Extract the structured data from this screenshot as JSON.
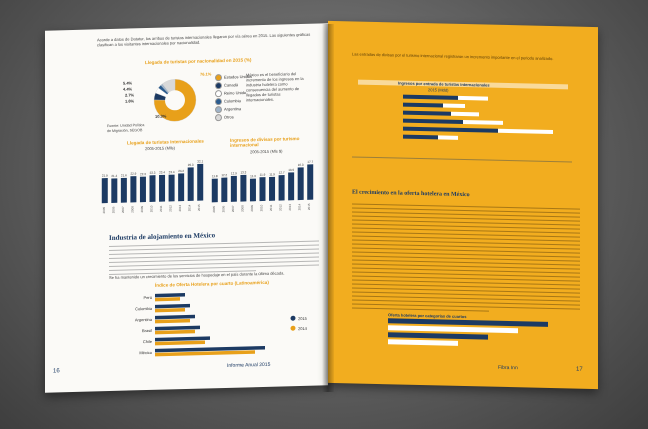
{
  "left_page": {
    "intro_text": "Acorde a datos de Datatur, los arribos de turistas internacionales llegaron por vía aérea en 2015. Las siguientes gráficas clasifican a los visitantes internacionales por nacionalidad.",
    "donut_title": "Llegada de turistas por nacionalidad en 2015 (%)",
    "donut_values": [
      "76.1%",
      "5.4%",
      "4.4%",
      "2.7%",
      "1.6%",
      "10.3%"
    ],
    "legend": [
      "Estados Unidos",
      "Canadá",
      "Reino Unido",
      "Colombia",
      "Argentina",
      "Otros"
    ],
    "donut_source": "Fuente: Unidad Política de Migración, SEGOB",
    "side_text": "México es el beneficiario del incremento de los ingresos en la industria hotelera como consecuencia del aumento de llegadas de turistas internacionales.",
    "chart1_title": "Llegada de turistas internacionales",
    "chart1_subtitle": "2005-2015 (Mlls)",
    "chart2_title": "Ingresos de divisas por turismo internacional",
    "chart2_subtitle": "2005-2015 (Mls $)",
    "section_title": "Industria de alojamiento en México",
    "body_text": "Se ha mantenido un crecimiento de los servicios de hospedaje en el país durante la última década.",
    "hbar_title": "Índice de Oferta Hotelera por cuarto (Latinoamérica)",
    "hbar_countries": [
      "Perú",
      "Colombia",
      "Argentina",
      "Brasil",
      "Chile",
      "México"
    ],
    "hbar_legend": [
      "2015",
      "2014"
    ],
    "page_number": "16",
    "footer_brand": "Informe Anual 2015"
  },
  "right_page": {
    "top_text": "Las entradas de divisas por el turismo internacional registraron un incremento importante en el periodo analizado.",
    "table_title": "Ingresos por entrada de turistas internacionales",
    "table_subtitle": "2015 (Mdd)",
    "section_title": "El crecimiento en la oferta hotelera en México",
    "bottom_chart_title": "Oferta hotelera por categorías de cuartos",
    "page_number": "17",
    "footer_brand": "Fibra Inn"
  },
  "colors": {
    "navy": "#1c3a63",
    "orange": "#f2ad1f",
    "accent": "#e8a01a"
  },
  "chart_data": [
    {
      "type": "pie",
      "title": "Llegada de turistas por nacionalidad en 2015 (%)",
      "categories": [
        "Estados Unidos",
        "Canadá",
        "Reino Unido",
        "Colombia",
        "Argentina",
        "Otros"
      ],
      "values": [
        76.1,
        5.4,
        4.4,
        2.7,
        1.6,
        10.3
      ]
    },
    {
      "type": "bar",
      "title": "Llegada de turistas internacionales",
      "categories": [
        "2005",
        "2006",
        "2007",
        "2008",
        "2009",
        "2010",
        "2011",
        "2012",
        "2013",
        "2014",
        "2015"
      ],
      "values": [
        21.9,
        21.4,
        21.6,
        22.9,
        22.3,
        23.3,
        23.4,
        23.4,
        24.2,
        29.3,
        32.1
      ],
      "ylim": [
        0,
        35
      ]
    },
    {
      "type": "bar",
      "title": "Ingresos de divisas por turismo internacional",
      "categories": [
        "2005",
        "2006",
        "2007",
        "2008",
        "2009",
        "2010",
        "2011",
        "2012",
        "2013",
        "2014",
        "2015"
      ],
      "values": [
        11.8,
        12.2,
        12.9,
        13.3,
        11.3,
        11.9,
        11.9,
        12.7,
        13.9,
        16.3,
        17.7
      ],
      "ylim": [
        0,
        20
      ]
    },
    {
      "type": "bar",
      "title": "Índice de Oferta Hotelera por cuarto (Latinoamérica)",
      "categories": [
        "Perú",
        "Colombia",
        "Argentina",
        "Brasil",
        "Chile",
        "México"
      ],
      "series": [
        {
          "name": "2015",
          "values": [
            0.6,
            0.7,
            0.8,
            0.9,
            1.1,
            2.2
          ]
        },
        {
          "name": "2014",
          "values": [
            0.5,
            0.6,
            0.7,
            0.8,
            1.0,
            2.0
          ]
        }
      ]
    }
  ]
}
